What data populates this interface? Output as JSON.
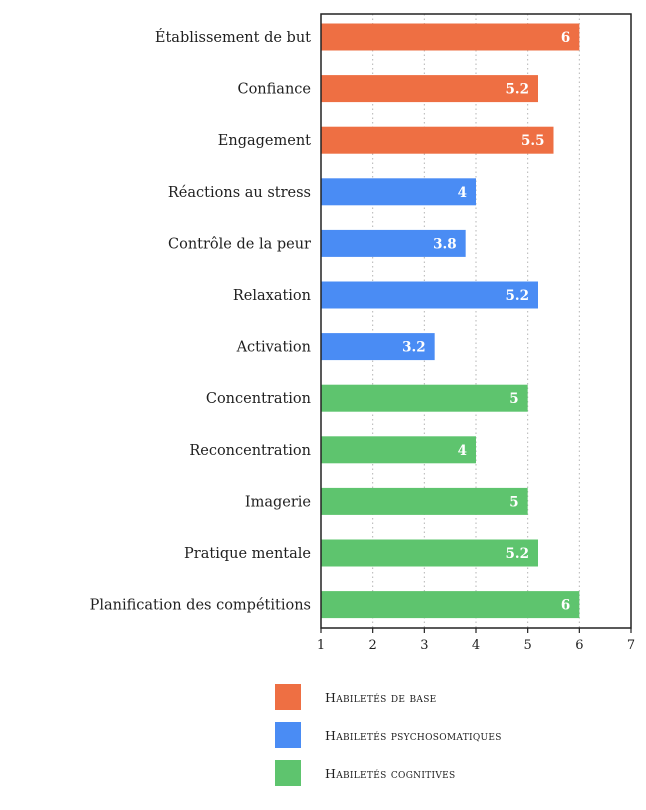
{
  "chart_data": {
    "type": "bar",
    "orientation": "horizontal",
    "xlim": [
      1,
      7
    ],
    "xticks": [
      1,
      2,
      3,
      4,
      5,
      6,
      7
    ],
    "grid": "vertical-dotted",
    "legend_position": "bottom",
    "categories": [
      "Établissement de but",
      "Confiance",
      "Engagement",
      "Réactions au stress",
      "Contrôle de la peur",
      "Relaxation",
      "Activation",
      "Concentration",
      "Reconcentration",
      "Imagerie",
      "Pratique mentale",
      "Planification des compétitions"
    ],
    "values": [
      6,
      5.2,
      5.5,
      4,
      3.8,
      5.2,
      3.2,
      5,
      4,
      5,
      5.2,
      6
    ],
    "value_labels": [
      "6",
      "5.2",
      "5.5",
      "4",
      "3.8",
      "5.2",
      "3.2",
      "5",
      "4",
      "5",
      "5.2",
      "6"
    ],
    "groups": [
      0,
      0,
      0,
      1,
      1,
      1,
      1,
      2,
      2,
      2,
      2,
      2
    ],
    "series": [
      {
        "name": "Habiletés de base",
        "color": "#ee6f43"
      },
      {
        "name": "Habiletés psychosomatiques",
        "color": "#4a8cf4"
      },
      {
        "name": "Habiletés cognitives",
        "color": "#5ec46e"
      }
    ]
  }
}
